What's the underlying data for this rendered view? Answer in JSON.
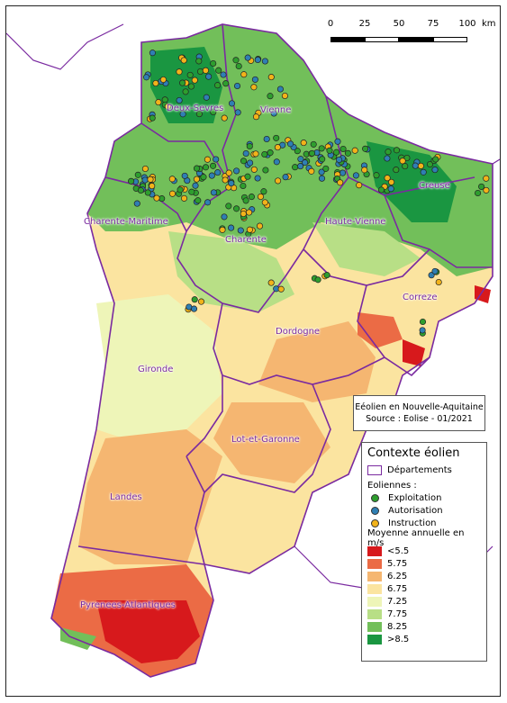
{
  "departments": [
    {
      "id": "deux-sevres",
      "label": "Deux-Sevres"
    },
    {
      "id": "vienne",
      "label": "Vienne"
    },
    {
      "id": "creuse",
      "label": "Creuse"
    },
    {
      "id": "charente-maritime",
      "label": "Charente-Maritime"
    },
    {
      "id": "haute-vienne",
      "label": "Haute-Vienne"
    },
    {
      "id": "charente",
      "label": "Charente"
    },
    {
      "id": "correze",
      "label": "Correze"
    },
    {
      "id": "dordogne",
      "label": "Dordogne"
    },
    {
      "id": "gironde",
      "label": "Gironde"
    },
    {
      "id": "lot-et-garonne",
      "label": "Lot-et-Garonne"
    },
    {
      "id": "landes",
      "label": "Landes"
    },
    {
      "id": "pyrenees-atlantiques",
      "label": "Pyrenees-Atlantiques"
    }
  ],
  "scale": {
    "ticks": [
      "0",
      "25",
      "50",
      "75",
      "100"
    ],
    "unit": "km"
  },
  "source": {
    "line1": "Eéolien en Nouvelle-Aquitaine",
    "line2": "Source : Eolise - 01/2021"
  },
  "legend": {
    "title": "Contexte éolien",
    "departments_label": "Départements",
    "eoliennes_label": "Eoliennes :",
    "status": [
      {
        "label": "Exploitation",
        "color": "#2e9e2e"
      },
      {
        "label": "Autorisation",
        "color": "#2f7fb3"
      },
      {
        "label": "Instruction",
        "color": "#f2b31a"
      }
    ],
    "wind_title": "Moyenne annuelle en m/s",
    "wind_classes": [
      {
        "label": "<5.5",
        "color": "#d7191c"
      },
      {
        "label": "5.75",
        "color": "#eb6b45"
      },
      {
        "label": "6.25",
        "color": "#f5b671"
      },
      {
        "label": "6.75",
        "color": "#fbe4a0"
      },
      {
        "label": "7.25",
        "color": "#eef5b8"
      },
      {
        "label": "7.75",
        "color": "#b8df86"
      },
      {
        "label": "8.25",
        "color": "#72bf5a"
      },
      {
        "label": ">8.5",
        "color": "#1a9641"
      }
    ]
  },
  "colors": {
    "boundary": "#7a2aa0"
  }
}
